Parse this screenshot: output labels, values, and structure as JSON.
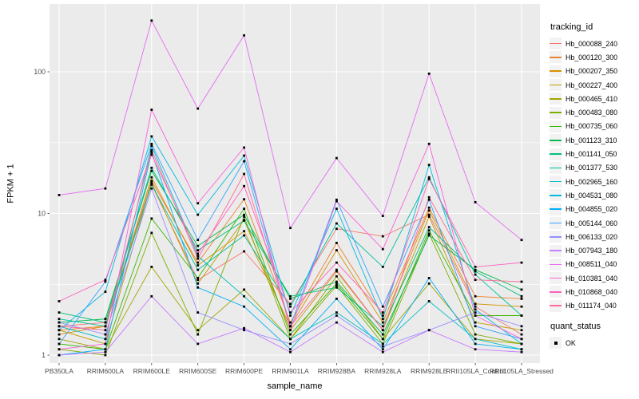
{
  "figure": {
    "panel_bg": "#EBEBEB",
    "grid_color": "#FFFFFF",
    "tick_text_color": "#4D4D4D",
    "tick_mark_color": "#333333",
    "point_color": "#000000",
    "legend_key_bg": "#F2F2F2"
  },
  "chart_data": {
    "type": "line",
    "title": "",
    "xlabel": "sample_name",
    "ylabel": "FPKM + 1",
    "y_scale": "log10",
    "y_ticks": [
      1,
      10,
      100
    ],
    "y_minor_ticks": [
      3.162,
      31.62
    ],
    "ylim": [
      0.88,
      290
    ],
    "grid": true,
    "legend_position": "right",
    "point_marker": "black-square",
    "legend_title": "tracking_id",
    "x_categories": [
      "PB350LA",
      "RRIM600LA",
      "RRIM600LE",
      "RRIM600SE",
      "RRIM600PE",
      "RRIM901LA",
      "RRIM928BA",
      "RRIM928LA",
      "RRIM928LE",
      "RRII105LA_Control",
      "RRII105LA_Stressed"
    ],
    "series": [
      {
        "name": "Hb_000088_240",
        "color": "#F8766D",
        "values": [
          1.6,
          1.7,
          16,
          3.4,
          5.4,
          2.3,
          7.8,
          6.9,
          9.8,
          2.2,
          1.4
        ]
      },
      {
        "name": "Hb_000120_300",
        "color": "#EA8331",
        "values": [
          1.5,
          1.6,
          17,
          4.5,
          12.6,
          1.7,
          6.2,
          1.9,
          11,
          2.6,
          2.5
        ]
      },
      {
        "name": "Hb_000207_350",
        "color": "#D89000",
        "values": [
          1.4,
          1.6,
          18,
          4.3,
          7.5,
          1.6,
          5.5,
          1.7,
          10.5,
          2.3,
          2.2
        ]
      },
      {
        "name": "Hb_000227_400",
        "color": "#C09B00",
        "values": [
          1.5,
          1.2,
          16.5,
          3.2,
          9.0,
          1.5,
          3.9,
          1.5,
          9.5,
          1.7,
          1.5
        ]
      },
      {
        "name": "Hb_000465_410",
        "color": "#A3A500",
        "values": [
          1.3,
          1.1,
          4.2,
          1.5,
          2.9,
          1.3,
          3.6,
          1.3,
          3.2,
          1.3,
          1.2
        ]
      },
      {
        "name": "Hb_000483_080",
        "color": "#7CAE00",
        "values": [
          1.1,
          1.0,
          7.3,
          1.4,
          9.5,
          1.3,
          3.1,
          1.2,
          7.2,
          1.4,
          1.2
        ]
      },
      {
        "name": "Hb_000735_060",
        "color": "#39B600",
        "values": [
          1.2,
          1.1,
          9.2,
          3.5,
          10.8,
          1.4,
          3.2,
          1.3,
          7.6,
          1.9,
          1.9
        ]
      },
      {
        "name": "Hb_001123_310",
        "color": "#00BB4E",
        "values": [
          1.7,
          1.8,
          20,
          5.9,
          9.8,
          2.5,
          3.3,
          1.4,
          7.0,
          4.0,
          2.9
        ]
      },
      {
        "name": "Hb_001141_050",
        "color": "#00BF7D",
        "values": [
          2.0,
          1.7,
          21,
          5.5,
          8.9,
          2.6,
          3.0,
          1.6,
          8.0,
          3.9,
          2.6
        ]
      },
      {
        "name": "Hb_001377_530",
        "color": "#00C1A3",
        "values": [
          1.8,
          1.6,
          16,
          4.0,
          7.0,
          2.2,
          8.5,
          4.2,
          18,
          3.7,
          1.9
        ]
      },
      {
        "name": "Hb_002965_160",
        "color": "#00BFC4",
        "values": [
          1.6,
          1.3,
          30,
          5.0,
          2.6,
          1.3,
          2.0,
          1.2,
          2.4,
          1.3,
          1.1
        ]
      },
      {
        "name": "Hb_004531_080",
        "color": "#00BAE0",
        "values": [
          1.5,
          2.8,
          35,
          9.8,
          25.6,
          1.9,
          10.8,
          1.8,
          22,
          2.1,
          1.2
        ]
      },
      {
        "name": "Hb_004855_020",
        "color": "#00B0F6",
        "values": [
          1.0,
          1.1,
          27,
          3.0,
          2.2,
          1.1,
          2.5,
          1.1,
          3.5,
          1.2,
          1.1
        ]
      },
      {
        "name": "Hb_005144_060",
        "color": "#35A2FF",
        "values": [
          1.2,
          3.3,
          31,
          6.5,
          23.4,
          1.6,
          12.5,
          2.2,
          12.5,
          1.6,
          1.3
        ]
      },
      {
        "name": "Hb_006133_020",
        "color": "#9590FF",
        "values": [
          1.7,
          1.4,
          15,
          2.0,
          1.5,
          1.2,
          1.9,
          1.15,
          1.5,
          2.0,
          1.6
        ]
      },
      {
        "name": "Hb_007943_180",
        "color": "#C77CFF",
        "values": [
          1.0,
          1.05,
          2.6,
          1.2,
          1.55,
          1.05,
          1.7,
          1.05,
          1.5,
          1.1,
          1.05
        ]
      },
      {
        "name": "Hb_008511_040",
        "color": "#E76BF3",
        "values": [
          13.5,
          15,
          230,
          55,
          181,
          7.9,
          24.6,
          9.6,
          97,
          12,
          6.5
        ]
      },
      {
        "name": "Hb_010381_040",
        "color": "#FA62DB",
        "values": [
          1.1,
          1.2,
          54,
          11.8,
          29.2,
          1.5,
          12.2,
          5.6,
          31,
          1.9,
          1.3
        ]
      },
      {
        "name": "Hb_010868_040",
        "color": "#FF62BC",
        "values": [
          2.4,
          3.4,
          26,
          5.2,
          15.6,
          2.0,
          4.5,
          2.0,
          17.5,
          4.2,
          4.5
        ]
      },
      {
        "name": "Hb_011174_040",
        "color": "#FF6A98",
        "values": [
          1.6,
          1.5,
          28,
          4.8,
          19,
          1.6,
          4.0,
          1.5,
          13,
          3.4,
          3.3
        ]
      }
    ],
    "quant_status": {
      "title": "quant_status",
      "items": [
        {
          "label": "OK",
          "marker": "square",
          "color": "#000000"
        }
      ]
    }
  }
}
